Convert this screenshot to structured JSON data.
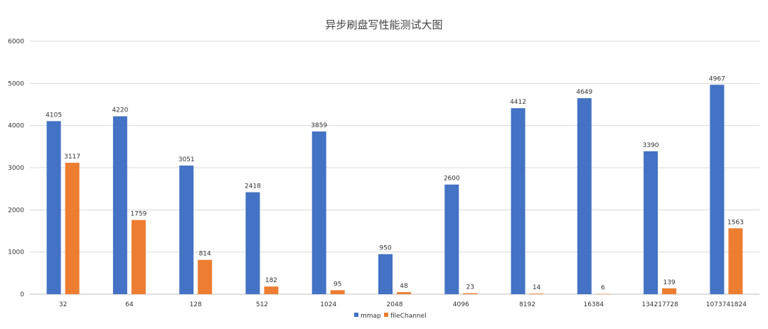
{
  "chart_data": {
    "type": "bar",
    "title": "异步刷盘写性能测试大图",
    "xlabel": "",
    "ylabel": "",
    "ylim": [
      0,
      6000
    ],
    "yticks": [
      0,
      1000,
      2000,
      3000,
      4000,
      5000,
      6000
    ],
    "grid": true,
    "legend_position": "bottom",
    "categories": [
      "32",
      "64",
      "128",
      "512",
      "1024",
      "2048",
      "4096",
      "8192",
      "16384",
      "134217728",
      "1073741824"
    ],
    "series": [
      {
        "name": "mmap",
        "color": "#4472C4",
        "values": [
          4105,
          4220,
          3051,
          2418,
          3859,
          950,
          2600,
          4412,
          4649,
          3390,
          4967
        ]
      },
      {
        "name": "fileChannel",
        "color": "#ED7D31",
        "values": [
          3117,
          1759,
          814,
          182,
          95,
          48,
          23,
          14,
          6,
          139,
          1563
        ]
      }
    ]
  }
}
